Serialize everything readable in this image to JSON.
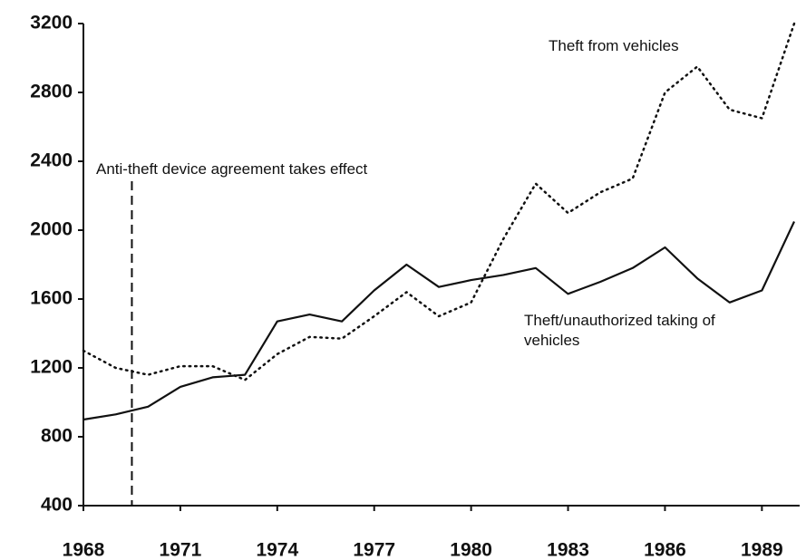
{
  "chart_data": {
    "type": "line",
    "x": [
      1968,
      1969,
      1970,
      1971,
      1972,
      1973,
      1974,
      1975,
      1976,
      1977,
      1978,
      1979,
      1980,
      1981,
      1982,
      1983,
      1984,
      1985,
      1986,
      1987,
      1988,
      1989,
      1990
    ],
    "series": [
      {
        "name": "Theft from vehicles",
        "color": "#111111",
        "dash": "dotted",
        "values": [
          1300,
          1200,
          1160,
          1210,
          1210,
          1130,
          1280,
          1380,
          1370,
          1500,
          1640,
          1500,
          1580,
          1950,
          2270,
          2100,
          2220,
          2300,
          2800,
          2950,
          2700,
          2650,
          3200
        ]
      },
      {
        "name": "Theft/unauthorized taking of vehicles",
        "color": "#111111",
        "dash": "solid",
        "values": [
          900,
          930,
          975,
          1090,
          1145,
          1160,
          1470,
          1510,
          1470,
          1650,
          1800,
          1670,
          1710,
          1740,
          1780,
          1630,
          1700,
          1780,
          1900,
          1720,
          1580,
          1650,
          2050
        ]
      }
    ],
    "annotations": [
      {
        "text": "Anti-theft device agreement takes effect",
        "x": 1969.5
      }
    ],
    "xlim": [
      1968,
      1990
    ],
    "xticks": [
      1968,
      1971,
      1974,
      1977,
      1980,
      1983,
      1986,
      1989
    ],
    "ylim": [
      400,
      3200
    ],
    "yticks": [
      400,
      800,
      1200,
      1600,
      2000,
      2400,
      2800,
      3200
    ]
  }
}
